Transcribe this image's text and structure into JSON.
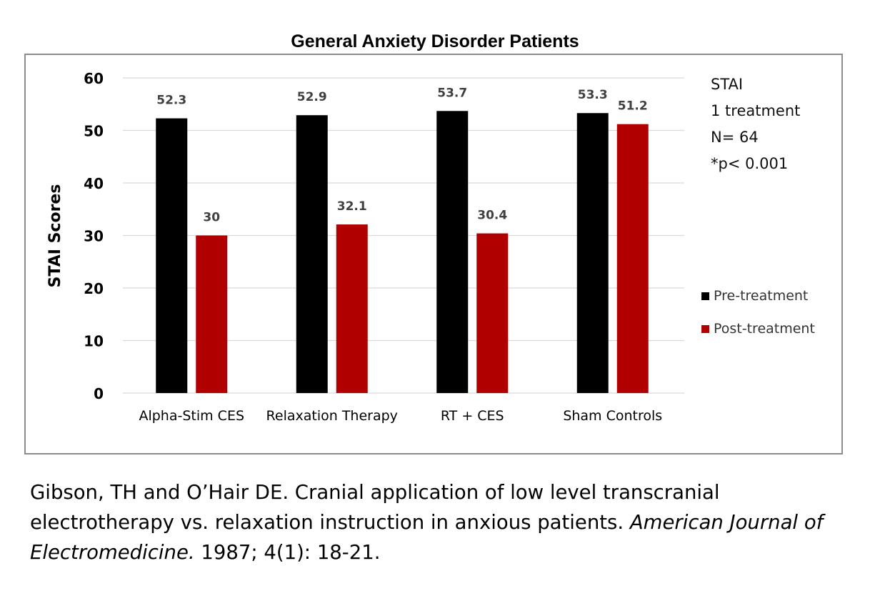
{
  "chart_data": {
    "type": "bar",
    "title": "General Anxiety Disorder Patients",
    "ylabel": "STAI Scores",
    "xlabel": "",
    "ylim": [
      0,
      60
    ],
    "yticks": [
      "0",
      "10",
      "20",
      "30",
      "40",
      "50",
      "60"
    ],
    "grid": true,
    "legend_position": "right",
    "categories": [
      "Alpha-Stim CES",
      "Relaxation Therapy",
      "RT + CES",
      "Sham Controls"
    ],
    "series": [
      {
        "name": "Pre-treatment",
        "color": "#000000",
        "values": [
          52.3,
          52.9,
          53.7,
          53.3
        ],
        "labels": [
          "52.3",
          "52.9",
          "53.7",
          "53.3"
        ]
      },
      {
        "name": "Post-treatment",
        "color": "#b00000",
        "values": [
          30,
          32.1,
          30.4,
          51.2
        ],
        "labels": [
          "30",
          "32.1",
          "30.4",
          "51.2"
        ]
      }
    ]
  },
  "notes": [
    "STAI",
    "1 treatment",
    "N= 64",
    "*p< 0.001"
  ],
  "citation": {
    "part1": "Gibson, TH and O’Hair DE. Cranial application of low level transcranial electrotherapy vs. relaxation instruction in anxious patients. ",
    "journal": "American Journal of Electromedicine.",
    "part2": " 1987; 4(1): 18-21."
  }
}
